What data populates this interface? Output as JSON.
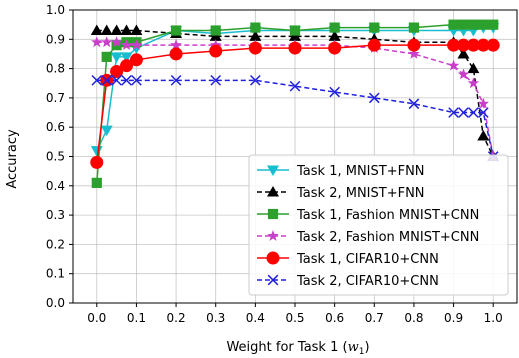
{
  "chart_data": {
    "type": "line",
    "title": "",
    "xlabel_main": "Weight for Task 1 (",
    "xlabel_var": "w",
    "xlabel_sub": "1",
    "xlabel_close": ")",
    "ylabel": "Accuracy",
    "xlim": [
      -0.06,
      1.06
    ],
    "ylim": [
      0.0,
      1.0
    ],
    "xticks": [
      0.0,
      0.1,
      0.2,
      0.3,
      0.4,
      0.5,
      0.6,
      0.7,
      0.8,
      0.9,
      1.0
    ],
    "xtick_labels": [
      "0.0",
      "0.1",
      "0.2",
      "0.3",
      "0.4",
      "0.5",
      "0.6",
      "0.7",
      "0.8",
      "0.9",
      "1.0"
    ],
    "yticks": [
      0.0,
      0.1,
      0.2,
      0.3,
      0.4,
      0.5,
      0.6,
      0.7,
      0.8,
      0.9,
      1.0
    ],
    "ytick_labels": [
      "0.0",
      "0.1",
      "0.2",
      "0.3",
      "0.4",
      "0.5",
      "0.6",
      "0.7",
      "0.8",
      "0.9",
      "1.0"
    ],
    "grid": true,
    "legend_position": "lower-right",
    "x": [
      0.0,
      0.025,
      0.05,
      0.075,
      0.1,
      0.2,
      0.3,
      0.4,
      0.5,
      0.6,
      0.7,
      0.8,
      0.9,
      0.925,
      0.95,
      0.975,
      1.0
    ],
    "series": [
      {
        "name": "Task 1, MNIST+FNN",
        "color": "#17becf",
        "linestyle": "solid",
        "marker": "triangle-down",
        "values": [
          0.52,
          0.59,
          0.84,
          0.84,
          0.87,
          0.93,
          0.92,
          0.93,
          0.93,
          0.93,
          0.93,
          0.93,
          0.93,
          0.93,
          0.93,
          0.94,
          0.94
        ]
      },
      {
        "name": "Task 2, MNIST+FNN",
        "color": "#000000",
        "linestyle": "dashed",
        "marker": "triangle-up",
        "values": [
          0.93,
          0.93,
          0.93,
          0.93,
          0.93,
          0.92,
          0.91,
          0.91,
          0.91,
          0.91,
          0.9,
          0.89,
          0.89,
          0.85,
          0.8,
          0.57,
          0.5
        ]
      },
      {
        "name": "Task 1, Fashion MNIST+CNN",
        "color": "#2ca02c",
        "linestyle": "solid",
        "marker": "square",
        "values": [
          0.41,
          0.84,
          0.88,
          0.89,
          0.89,
          0.93,
          0.93,
          0.94,
          0.93,
          0.94,
          0.94,
          0.94,
          0.95,
          0.95,
          0.95,
          0.95,
          0.95
        ]
      },
      {
        "name": "Task 2, Fashion MNIST+CNN",
        "color": "#c93fc9",
        "linestyle": "dashed",
        "marker": "star",
        "values": [
          0.89,
          0.89,
          0.89,
          0.88,
          0.88,
          0.88,
          0.88,
          0.88,
          0.88,
          0.88,
          0.87,
          0.85,
          0.81,
          0.78,
          0.75,
          0.68,
          0.5
        ]
      },
      {
        "name": "Task 1, CIFAR10+CNN",
        "color": "#ff0000",
        "linestyle": "solid",
        "marker": "circle",
        "values": [
          0.48,
          0.76,
          0.79,
          0.81,
          0.83,
          0.85,
          0.86,
          0.87,
          0.87,
          0.87,
          0.88,
          0.88,
          0.88,
          0.88,
          0.88,
          0.88,
          0.88
        ]
      },
      {
        "name": "Task 2, CIFAR10+CNN",
        "color": "#1f1fdc",
        "linestyle": "dashed",
        "marker": "x",
        "values": [
          0.76,
          0.76,
          0.76,
          0.76,
          0.76,
          0.76,
          0.76,
          0.76,
          0.74,
          0.72,
          0.7,
          0.68,
          0.65,
          0.65,
          0.65,
          0.65,
          0.5
        ]
      }
    ]
  }
}
